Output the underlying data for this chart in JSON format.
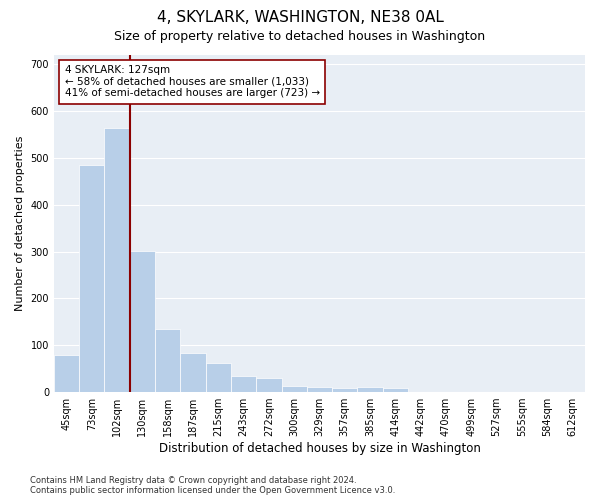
{
  "title": "4, SKYLARK, WASHINGTON, NE38 0AL",
  "subtitle": "Size of property relative to detached houses in Washington",
  "xlabel": "Distribution of detached houses by size in Washington",
  "ylabel": "Number of detached properties",
  "categories": [
    "45sqm",
    "73sqm",
    "102sqm",
    "130sqm",
    "158sqm",
    "187sqm",
    "215sqm",
    "243sqm",
    "272sqm",
    "300sqm",
    "329sqm",
    "357sqm",
    "385sqm",
    "414sqm",
    "442sqm",
    "470sqm",
    "499sqm",
    "527sqm",
    "555sqm",
    "584sqm",
    "612sqm"
  ],
  "values": [
    80,
    485,
    565,
    302,
    135,
    83,
    62,
    35,
    30,
    12,
    10,
    8,
    10,
    8,
    0,
    0,
    0,
    0,
    0,
    0,
    0
  ],
  "bar_color": "#b8cfe8",
  "vline_x_index": 3,
  "vline_color": "#8b0000",
  "annotation_line1": "4 SKYLARK: 127sqm",
  "annotation_line2": "← 58% of detached houses are smaller (1,033)",
  "annotation_line3": "41% of semi-detached houses are larger (723) →",
  "annotation_box_color": "#ffffff",
  "annotation_box_edge": "#8b0000",
  "ylim": [
    0,
    720
  ],
  "yticks": [
    0,
    100,
    200,
    300,
    400,
    500,
    600,
    700
  ],
  "background_color": "#e8eef5",
  "grid_color": "#ffffff",
  "fig_background": "#ffffff",
  "footer": "Contains HM Land Registry data © Crown copyright and database right 2024.\nContains public sector information licensed under the Open Government Licence v3.0.",
  "title_fontsize": 11,
  "subtitle_fontsize": 9,
  "xlabel_fontsize": 8.5,
  "ylabel_fontsize": 8,
  "tick_fontsize": 7,
  "annotation_fontsize": 7.5,
  "footer_fontsize": 6
}
